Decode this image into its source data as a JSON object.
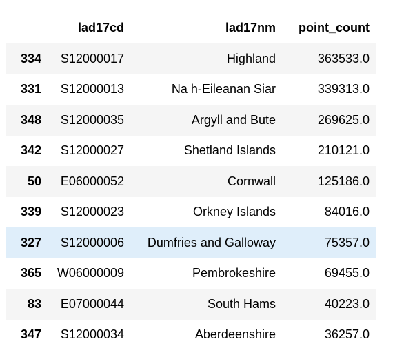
{
  "table": {
    "columns": [
      "",
      "lad17cd",
      "lad17nm",
      "point_count"
    ],
    "rows": [
      {
        "index": "334",
        "lad17cd": "S12000017",
        "lad17nm": "Highland",
        "point_count": "363533.0"
      },
      {
        "index": "331",
        "lad17cd": "S12000013",
        "lad17nm": "Na h-Eileanan Siar",
        "point_count": "339313.0"
      },
      {
        "index": "348",
        "lad17cd": "S12000035",
        "lad17nm": "Argyll and Bute",
        "point_count": "269625.0"
      },
      {
        "index": "342",
        "lad17cd": "S12000027",
        "lad17nm": "Shetland Islands",
        "point_count": "210121.0"
      },
      {
        "index": "50",
        "lad17cd": "E06000052",
        "lad17nm": "Cornwall",
        "point_count": "125186.0"
      },
      {
        "index": "339",
        "lad17cd": "S12000023",
        "lad17nm": "Orkney Islands",
        "point_count": "84016.0"
      },
      {
        "index": "327",
        "lad17cd": "S12000006",
        "lad17nm": "Dumfries and Galloway",
        "point_count": "75357.0"
      },
      {
        "index": "365",
        "lad17cd": "W06000009",
        "lad17nm": "Pembrokeshire",
        "point_count": "69455.0"
      },
      {
        "index": "83",
        "lad17cd": "E07000044",
        "lad17nm": "South Hams",
        "point_count": "40223.0"
      },
      {
        "index": "347",
        "lad17cd": "S12000034",
        "lad17nm": "Aberdeenshire",
        "point_count": "36257.0"
      }
    ],
    "hover_row": 6
  },
  "colors": {
    "stripe": "#f5f5f5",
    "hover": "#dfeefa",
    "header_rule": "#000000"
  }
}
